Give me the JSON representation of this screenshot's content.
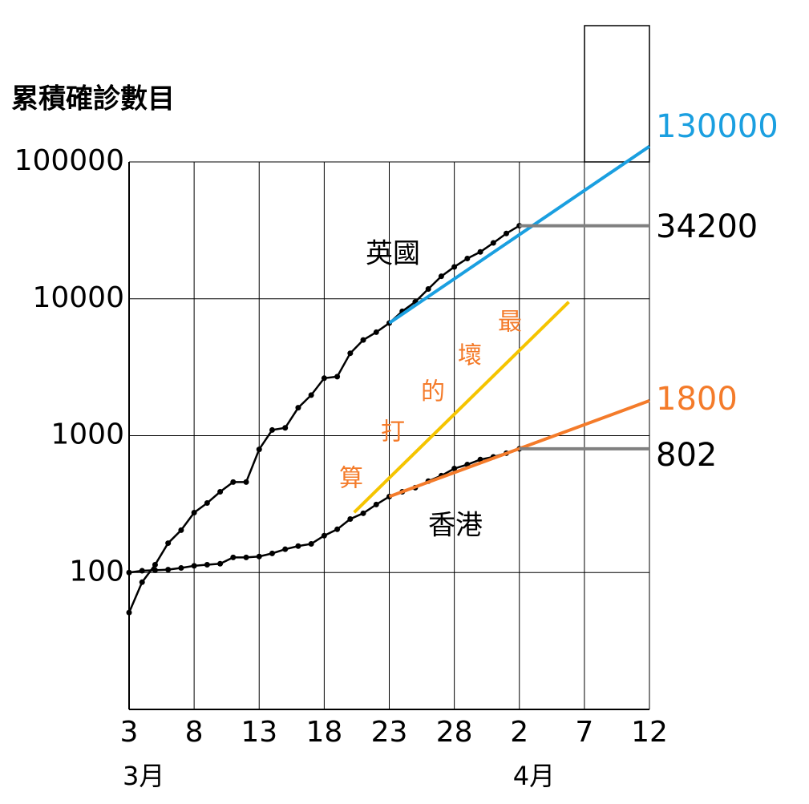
{
  "chart_data": {
    "type": "line",
    "title": "累積確診數目",
    "xlim": [
      3,
      43
    ],
    "xticks": [
      3,
      8,
      13,
      18,
      23,
      28,
      {
        "value": 33,
        "label": "2"
      },
      {
        "value": 38,
        "label": "7"
      },
      {
        "value": 43,
        "label": "12"
      }
    ],
    "months": [
      {
        "x": 3,
        "label": "3月"
      },
      {
        "x": 33,
        "label": "4月"
      }
    ],
    "log_y": true,
    "ylim": [
      10,
      100000
    ],
    "yticks": [
      100,
      1000,
      10000,
      100000
    ],
    "grid": true,
    "series": [
      {
        "name": "英國",
        "color": "#000000",
        "x": [
          3,
          4,
          5,
          6,
          7,
          8,
          9,
          10,
          11,
          12,
          13,
          14,
          15,
          16,
          17,
          18,
          19,
          20,
          21,
          22,
          23,
          24,
          25,
          26,
          27,
          28,
          29,
          30,
          31,
          32,
          33
        ],
        "values": [
          51,
          85,
          114,
          164,
          204,
          274,
          322,
          389,
          458,
          458,
          794,
          1100,
          1140,
          1600,
          1980,
          2630,
          2700,
          4000,
          5000,
          5700,
          6650,
          8100,
          9500,
          11800,
          14600,
          17100,
          19700,
          22000,
          25600,
          30000,
          34200
        ]
      },
      {
        "name": "香港",
        "color": "#000000",
        "x": [
          3,
          4,
          5,
          6,
          7,
          8,
          9,
          10,
          11,
          12,
          13,
          14,
          15,
          16,
          17,
          18,
          19,
          20,
          21,
          22,
          23,
          24,
          25,
          26,
          27,
          28,
          29,
          30,
          31,
          32,
          33
        ],
        "values": [
          100,
          103,
          104,
          105,
          108,
          112,
          114,
          116,
          129,
          129,
          131,
          138,
          148,
          156,
          162,
          186,
          207,
          246,
          271,
          314,
          359,
          389,
          417,
          465,
          510,
          575,
          615,
          669,
          700,
          745,
          802
        ]
      },
      {
        "color": "#1a9fe0",
        "x": [
          23,
          43
        ],
        "values": [
          6650,
          130000
        ]
      },
      {
        "color": "#f47b2a",
        "x": [
          23,
          43
        ],
        "values": [
          359,
          1800
        ]
      },
      {
        "color": "#f5c400",
        "x": [
          20.3,
          36.8
        ],
        "values": [
          275,
          9480
        ]
      },
      {
        "color": "#808080",
        "x": [
          33,
          43
        ],
        "values": [
          34200,
          34200
        ]
      },
      {
        "color": "#808080",
        "x": [
          33,
          43
        ],
        "values": [
          802,
          802
        ]
      }
    ],
    "annotations": [
      "最",
      "壞",
      "的",
      "打",
      "算"
    ]
  }
}
